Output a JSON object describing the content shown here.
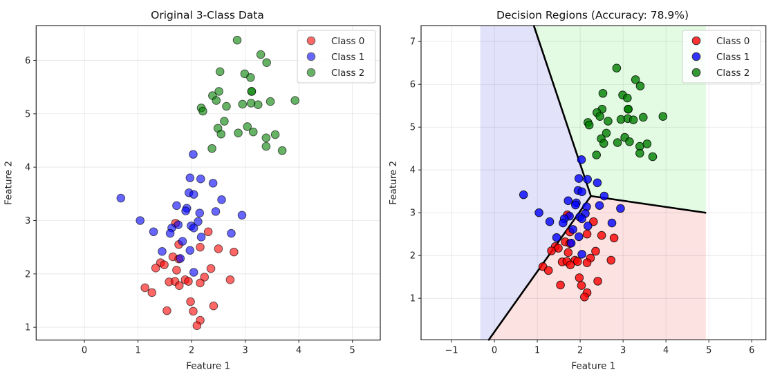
{
  "chart_data": [
    {
      "type": "scatter",
      "title": "Original 3-Class Data",
      "xlabel": "Feature 1",
      "ylabel": "Feature 2",
      "xlim": [
        -0.9,
        5.52
      ],
      "ylim": [
        0.76,
        6.65
      ],
      "xticks": [
        0,
        1,
        2,
        3,
        4,
        5
      ],
      "yticks": [
        1,
        2,
        3,
        4,
        5,
        6
      ],
      "grid": true,
      "legend": "top-right",
      "marker_alpha": 0.6,
      "series": [
        {
          "name": "Class 0",
          "color": "#ff0000"
        },
        {
          "name": "Class 1",
          "color": "#0000ff"
        },
        {
          "name": "Class 2",
          "color": "#008000"
        }
      ]
    },
    {
      "type": "scatter",
      "title": "Decision Regions (Accuracy: 78.9%)",
      "xlabel": "Feature 1",
      "ylabel": "Feature 2",
      "xlim": [
        -1.71,
        6.33
      ],
      "ylim": [
        0.03,
        7.37
      ],
      "xticks": [
        -1,
        0,
        1,
        2,
        3,
        4,
        5,
        6
      ],
      "yticks": [
        1,
        2,
        3,
        4,
        5,
        6,
        7
      ],
      "grid": true,
      "legend": "top-right",
      "marker_alpha": 0.8,
      "series": [
        {
          "name": "Class 0",
          "color": "#ff0000"
        },
        {
          "name": "Class 1",
          "color": "#0000ff"
        },
        {
          "name": "Class 2",
          "color": "#008000"
        }
      ],
      "regions": {
        "x_range": [
          -0.33,
          4.93
        ],
        "y_range": [
          0.03,
          7.37
        ],
        "colors": {
          "class0": "#fde2e2",
          "class1": "#e2e2fb",
          "class2": "#e3fbe3"
        },
        "junction": [
          2.25,
          3.39
        ],
        "boundary_01_end": [
          -0.13,
          0.03
        ],
        "boundary_12_end": [
          0.92,
          7.37
        ],
        "boundary_02_end": [
          4.92,
          3.0
        ]
      }
    }
  ],
  "points": {
    "Class 0": [
      [
        1.7,
        2.95
      ],
      [
        2.31,
        2.79
      ],
      [
        1.76,
        2.55
      ],
      [
        2.16,
        2.5
      ],
      [
        2.5,
        2.47
      ],
      [
        2.79,
        2.41
      ],
      [
        1.65,
        2.32
      ],
      [
        1.76,
        2.28
      ],
      [
        1.42,
        2.21
      ],
      [
        1.49,
        2.17
      ],
      [
        1.33,
        2.11
      ],
      [
        1.72,
        2.07
      ],
      [
        2.36,
        2.1
      ],
      [
        2.24,
        1.94
      ],
      [
        1.58,
        1.85
      ],
      [
        1.69,
        1.86
      ],
      [
        1.88,
        1.89
      ],
      [
        1.94,
        1.86
      ],
      [
        1.77,
        1.78
      ],
      [
        2.16,
        1.83
      ],
      [
        2.72,
        1.89
      ],
      [
        1.13,
        1.74
      ],
      [
        1.26,
        1.65
      ],
      [
        1.98,
        1.48
      ],
      [
        2.41,
        1.4
      ],
      [
        1.54,
        1.31
      ],
      [
        2.03,
        1.3
      ],
      [
        2.16,
        1.13
      ],
      [
        2.1,
        1.03
      ]
    ],
    "Class 1": [
      [
        2.03,
        4.24
      ],
      [
        1.97,
        3.8
      ],
      [
        2.17,
        3.78
      ],
      [
        2.4,
        3.7
      ],
      [
        1.95,
        3.52
      ],
      [
        2.04,
        3.49
      ],
      [
        0.68,
        3.42
      ],
      [
        2.56,
        3.39
      ],
      [
        1.72,
        3.28
      ],
      [
        1.91,
        3.23
      ],
      [
        1.89,
        3.18
      ],
      [
        2.15,
        3.14
      ],
      [
        2.45,
        3.17
      ],
      [
        2.94,
        3.1
      ],
      [
        1.04,
        3.0
      ],
      [
        2.12,
        2.98
      ],
      [
        1.75,
        2.92
      ],
      [
        1.63,
        2.86
      ],
      [
        1.99,
        2.9
      ],
      [
        2.04,
        2.86
      ],
      [
        1.29,
        2.79
      ],
      [
        1.6,
        2.76
      ],
      [
        2.74,
        2.76
      ],
      [
        2.18,
        2.69
      ],
      [
        1.83,
        2.61
      ],
      [
        1.45,
        2.42
      ],
      [
        1.97,
        2.44
      ],
      [
        1.79,
        2.29
      ],
      [
        2.04,
        2.03
      ]
    ],
    "Class 2": [
      [
        2.85,
        6.38
      ],
      [
        3.29,
        6.11
      ],
      [
        3.4,
        5.96
      ],
      [
        2.53,
        5.79
      ],
      [
        2.99,
        5.75
      ],
      [
        3.1,
        5.68
      ],
      [
        3.12,
        5.42
      ],
      [
        3.12,
        5.42
      ],
      [
        2.51,
        5.42
      ],
      [
        2.39,
        5.34
      ],
      [
        2.46,
        5.25
      ],
      [
        2.65,
        5.14
      ],
      [
        2.95,
        5.18
      ],
      [
        3.11,
        5.2
      ],
      [
        3.24,
        5.17
      ],
      [
        3.47,
        5.23
      ],
      [
        3.93,
        5.25
      ],
      [
        2.18,
        5.11
      ],
      [
        2.21,
        5.05
      ],
      [
        2.61,
        4.86
      ],
      [
        2.49,
        4.73
      ],
      [
        2.55,
        4.62
      ],
      [
        2.87,
        4.64
      ],
      [
        3.04,
        4.76
      ],
      [
        3.15,
        4.66
      ],
      [
        3.39,
        4.55
      ],
      [
        3.56,
        4.61
      ],
      [
        3.39,
        4.39
      ],
      [
        3.69,
        4.31
      ],
      [
        2.38,
        4.35
      ]
    ]
  }
}
